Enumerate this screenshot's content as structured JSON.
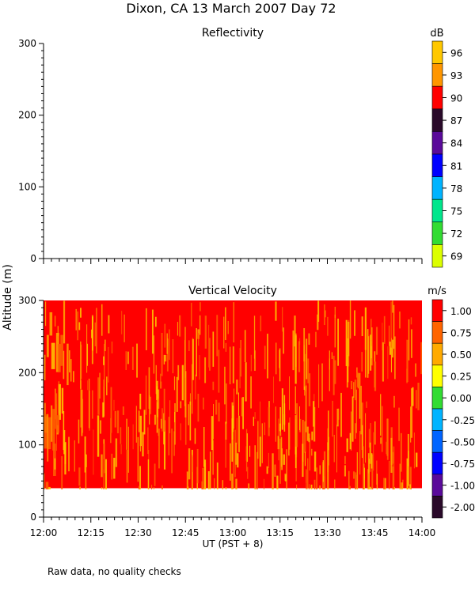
{
  "title": "Dixon, CA 13 March 2007  Day  72",
  "shared_ylabel": "Altitude (m)",
  "xlabel": "UT  (PST + 8)",
  "footer_note": "Raw data, no quality checks",
  "chart_data": [
    {
      "type": "heatmap",
      "title": "Reflectivity",
      "units": "dB",
      "ylim": [
        0,
        300
      ],
      "yticks": [
        0,
        100,
        200,
        300
      ],
      "xlim": [
        "12:00",
        "14:00"
      ],
      "x_tick_labels_shown": false,
      "data": "empty",
      "colorbar": {
        "labels": [
          "96",
          "93",
          "90",
          "87",
          "84",
          "81",
          "78",
          "75",
          "72",
          "69"
        ],
        "colors": [
          "#ffc800",
          "#ff9600",
          "#ff0000",
          "#2a0a2a",
          "#5a0a9a",
          "#0000ff",
          "#00b4ff",
          "#00e68c",
          "#32dc32",
          "#dcff00"
        ]
      }
    },
    {
      "type": "heatmap",
      "title": "Vertical Velocity",
      "units": "m/s",
      "ylim": [
        0,
        300
      ],
      "yticks": [
        0,
        100,
        200,
        300
      ],
      "data_altitude_range": [
        40,
        300
      ],
      "xlim": [
        "12:00",
        "14:00"
      ],
      "xticks": [
        "12:00",
        "12:15",
        "12:30",
        "12:45",
        "13:00",
        "13:15",
        "13:30",
        "13:45",
        "14:00"
      ],
      "dominant_value": 1.0,
      "colorbar": {
        "labels": [
          "1.00",
          "0.75",
          "0.50",
          "0.25",
          "0.00",
          "-0.25",
          "-0.50",
          "-0.75",
          "-1.00",
          "-2.00"
        ],
        "colors": [
          "#ff0000",
          "#ff6400",
          "#ffaa00",
          "#ffff00",
          "#32dc32",
          "#00b4ff",
          "#0064ff",
          "#0000ff",
          "#5a0a9a",
          "#2a0a2a"
        ]
      }
    }
  ]
}
